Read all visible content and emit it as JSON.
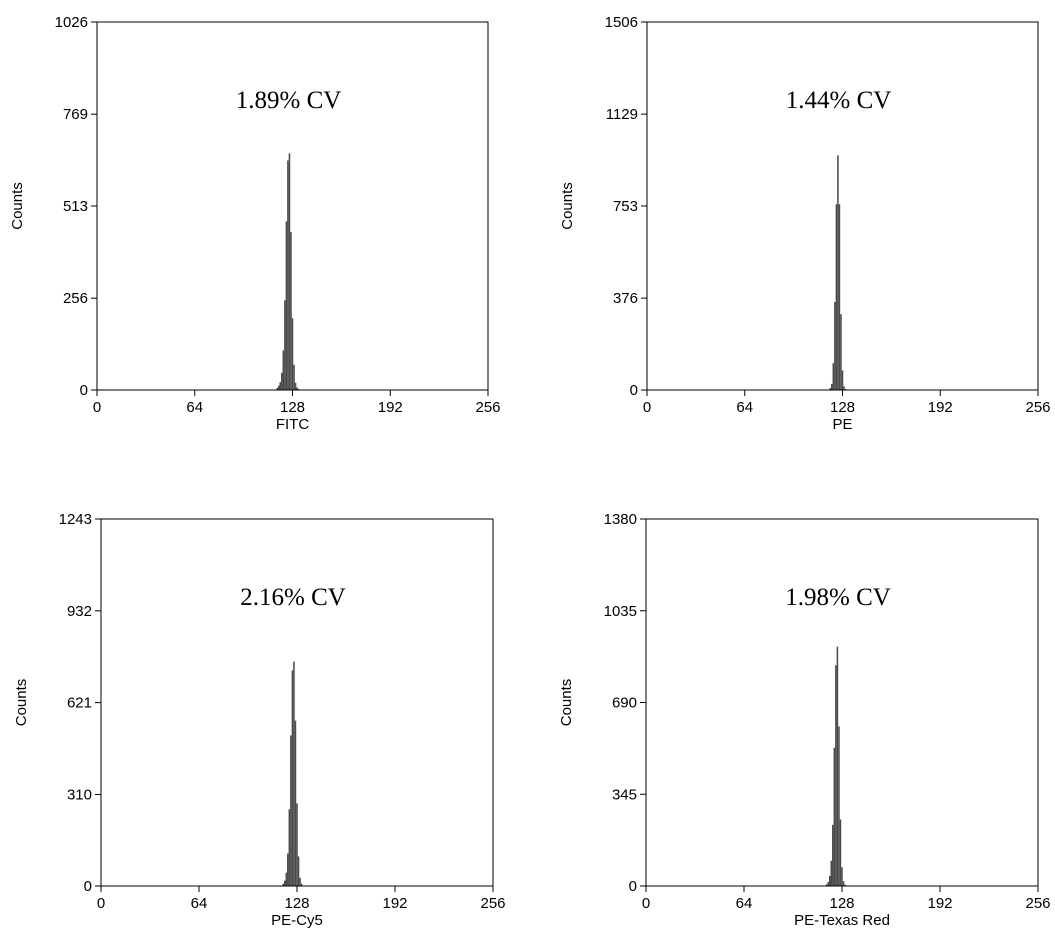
{
  "colors": {
    "bar": "#4a4a4a",
    "frame": "#000000",
    "background": "#ffffff"
  },
  "chart_data": [
    {
      "type": "bar",
      "annotation": "1.89% CV",
      "xlabel": "FITC",
      "ylabel": "Counts",
      "xlim": [
        0,
        256
      ],
      "ylim": [
        0,
        1026
      ],
      "xticks": [
        0,
        64,
        128,
        192,
        256
      ],
      "yticks": [
        0,
        256,
        513,
        769,
        1026
      ],
      "grid": false,
      "bins": [
        {
          "x": 118,
          "y": 6
        },
        {
          "x": 119,
          "y": 12
        },
        {
          "x": 120,
          "y": 22
        },
        {
          "x": 121,
          "y": 48
        },
        {
          "x": 122,
          "y": 110
        },
        {
          "x": 123,
          "y": 250
        },
        {
          "x": 124,
          "y": 470
        },
        {
          "x": 125,
          "y": 640
        },
        {
          "x": 126,
          "y": 660
        },
        {
          "x": 127,
          "y": 440
        },
        {
          "x": 128,
          "y": 200
        },
        {
          "x": 129,
          "y": 70
        },
        {
          "x": 130,
          "y": 20
        },
        {
          "x": 131,
          "y": 7
        },
        {
          "x": 132,
          "y": 3
        }
      ]
    },
    {
      "type": "bar",
      "annotation": "1.44% CV",
      "xlabel": "PE",
      "ylabel": "Counts",
      "xlim": [
        0,
        256
      ],
      "ylim": [
        0,
        1506
      ],
      "xticks": [
        0,
        64,
        128,
        192,
        256
      ],
      "yticks": [
        0,
        376,
        753,
        1129,
        1506
      ],
      "grid": false,
      "bins": [
        {
          "x": 120,
          "y": 8
        },
        {
          "x": 121,
          "y": 25
        },
        {
          "x": 122,
          "y": 110
        },
        {
          "x": 123,
          "y": 360
        },
        {
          "x": 124,
          "y": 760
        },
        {
          "x": 125,
          "y": 960
        },
        {
          "x": 126,
          "y": 760
        },
        {
          "x": 127,
          "y": 310
        },
        {
          "x": 128,
          "y": 80
        },
        {
          "x": 129,
          "y": 15
        },
        {
          "x": 130,
          "y": 4
        }
      ]
    },
    {
      "type": "bar",
      "annotation": "2.16% CV",
      "xlabel": "PE-Cy5",
      "ylabel": "Counts",
      "xlim": [
        0,
        256
      ],
      "ylim": [
        0,
        1243
      ],
      "xticks": [
        0,
        64,
        128,
        192,
        256
      ],
      "yticks": [
        0,
        310,
        621,
        932,
        1243
      ],
      "grid": false,
      "bins": [
        {
          "x": 119,
          "y": 8
        },
        {
          "x": 120,
          "y": 18
        },
        {
          "x": 121,
          "y": 45
        },
        {
          "x": 122,
          "y": 110
        },
        {
          "x": 123,
          "y": 260
        },
        {
          "x": 124,
          "y": 510
        },
        {
          "x": 125,
          "y": 730
        },
        {
          "x": 126,
          "y": 760
        },
        {
          "x": 127,
          "y": 560
        },
        {
          "x": 128,
          "y": 280
        },
        {
          "x": 129,
          "y": 100
        },
        {
          "x": 130,
          "y": 28
        },
        {
          "x": 131,
          "y": 8
        }
      ]
    },
    {
      "type": "bar",
      "annotation": "1.98% CV",
      "xlabel": "PE-Texas Red",
      "ylabel": "Counts",
      "xlim": [
        0,
        256
      ],
      "ylim": [
        0,
        1380
      ],
      "xticks": [
        0,
        64,
        128,
        192,
        256
      ],
      "yticks": [
        0,
        345,
        690,
        1035,
        1380
      ],
      "grid": false,
      "bins": [
        {
          "x": 118,
          "y": 6
        },
        {
          "x": 119,
          "y": 15
        },
        {
          "x": 120,
          "y": 38
        },
        {
          "x": 121,
          "y": 95
        },
        {
          "x": 122,
          "y": 230
        },
        {
          "x": 123,
          "y": 520
        },
        {
          "x": 124,
          "y": 830
        },
        {
          "x": 125,
          "y": 900
        },
        {
          "x": 126,
          "y": 600
        },
        {
          "x": 127,
          "y": 250
        },
        {
          "x": 128,
          "y": 70
        },
        {
          "x": 129,
          "y": 18
        },
        {
          "x": 130,
          "y": 5
        }
      ]
    }
  ]
}
